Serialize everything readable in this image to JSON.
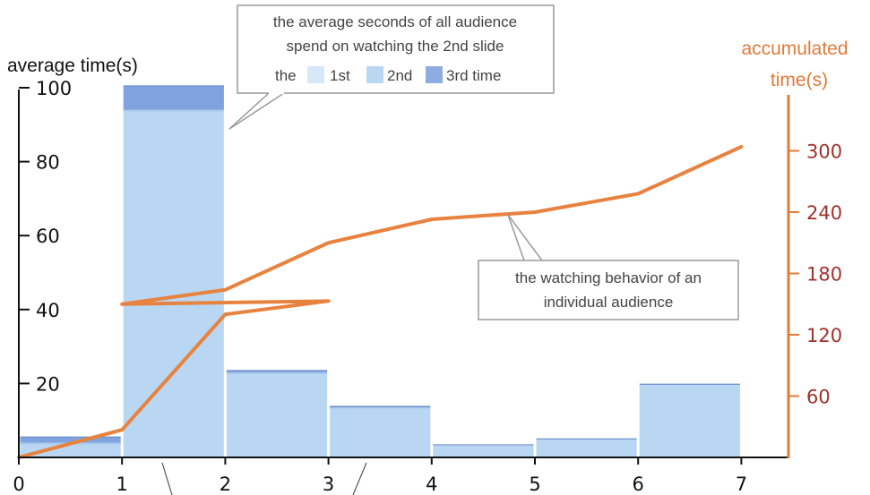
{
  "chart_data": {
    "type": "bar",
    "x_ticks": [
      "0",
      "1",
      "2",
      "3",
      "4",
      "5",
      "6",
      "7"
    ],
    "xlim": [
      0,
      7.5
    ],
    "ylabel": "average time(s)",
    "ylim": [
      0,
      100
    ],
    "y_ticks": [
      "20",
      "40",
      "60",
      "80",
      "100"
    ],
    "y2label_line1": "accumulated",
    "y2label_line2": "time(s)",
    "y2lim": [
      0,
      360
    ],
    "y2_ticks": [
      "60",
      "120",
      "180",
      "240",
      "300"
    ],
    "legend_prefix": "the",
    "legend": [
      {
        "name": "1st",
        "color": "#d6e8f8"
      },
      {
        "name": "2nd",
        "color": "#b9d7f3"
      },
      {
        "name": "3rd time",
        "color": "#8eacdf"
      }
    ],
    "bars": [
      {
        "slide": 1,
        "first": 3.5,
        "second": 0.5,
        "third": 1.5
      },
      {
        "slide": 2,
        "first": 93.5,
        "second": 0.5,
        "third": 6.5
      },
      {
        "slide": 3,
        "first": 22.5,
        "second": 0.5,
        "third": 0.5
      },
      {
        "slide": 4,
        "first": 13.2,
        "second": 0.3,
        "third": 0.3
      },
      {
        "slide": 5,
        "first": 3.2,
        "second": 0.2,
        "third": 0
      },
      {
        "slide": 6,
        "first": 4.8,
        "second": 0.2,
        "third": 0
      },
      {
        "slide": 7,
        "first": 19.6,
        "second": 0.2,
        "third": 0
      }
    ],
    "line": {
      "color": "#e8833f",
      "x": [
        0,
        1,
        2,
        3,
        1,
        2,
        3,
        4,
        5,
        6,
        7
      ],
      "y": [
        0,
        27,
        140,
        153,
        150,
        164,
        210,
        233,
        240,
        258,
        304
      ]
    },
    "annotations": [
      {
        "lines": [
          "the average seconds of all audience",
          "spend on watching the 2nd slide"
        ]
      },
      {
        "lines": [
          "the watching behavior of an",
          "individual audience"
        ]
      }
    ]
  },
  "colors": {
    "first": "#b9d7f3",
    "second": "#a9c9ee",
    "third": "#7fa3df",
    "line": "#e8833f",
    "right_axis": "#e07b39",
    "right_ticks": "#a0322d"
  }
}
